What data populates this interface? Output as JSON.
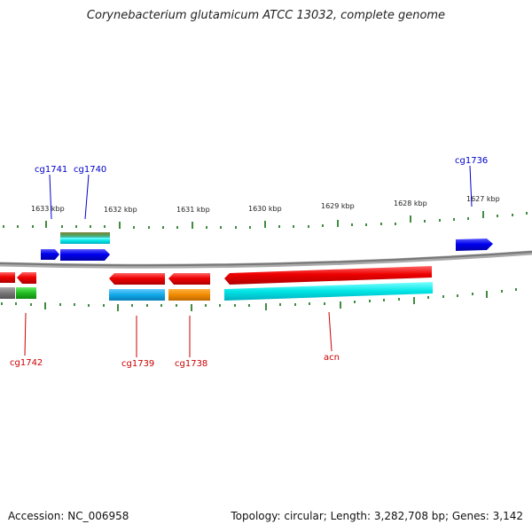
{
  "title": "Corynebacterium glutamicum ATCC 13032, complete genome",
  "footer": {
    "accession": "Accession: NC_006958",
    "summary": "Topology: circular; Length: 3,282,708 bp; Genes: 3,142"
  },
  "kbp_labels": [
    "1633 kbp",
    "1632 kbp",
    "1631 kbp",
    "1630 kbp",
    "1629 kbp",
    "1628 kbp",
    "1627 kbp"
  ],
  "gene_labels": {
    "top": [
      "cg1741",
      "cg1740",
      "cg1736"
    ],
    "bottom": [
      "cg1742",
      "cg1739",
      "cg1738",
      "acn"
    ]
  },
  "colors": {
    "forward_label": "#0000cc",
    "reverse_label": "#cc0000",
    "forward_gene": "#0000ee",
    "reverse_gene": "#ee0000",
    "tick": "#006600",
    "backbone": "#888888"
  }
}
